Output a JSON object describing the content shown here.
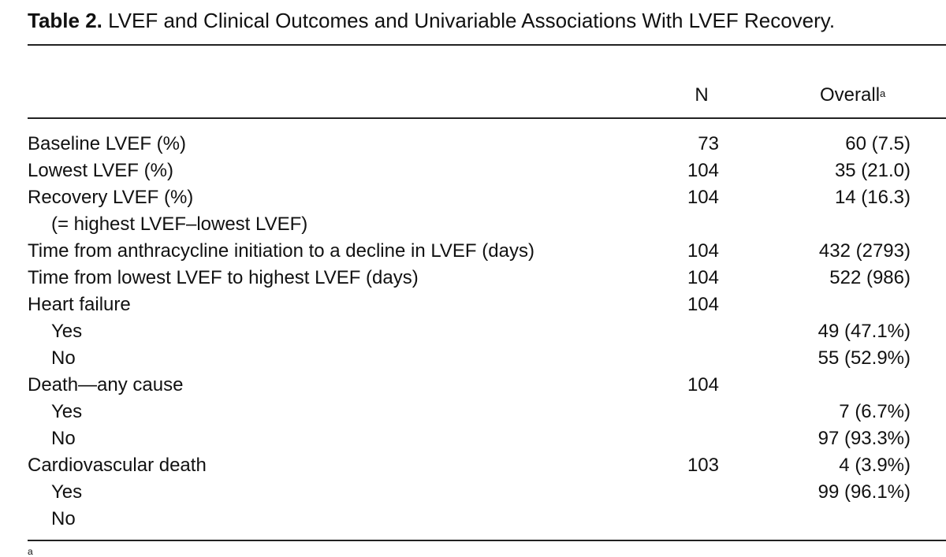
{
  "caption": {
    "label": "Table 2.",
    "text": "LVEF and Clinical Outcomes and Univariable Associations With LVEF Recovery."
  },
  "header": {
    "n": "N",
    "overall": "Overall",
    "overall_sup": "a"
  },
  "rows": [
    {
      "label": "Baseline LVEF (%)",
      "n": "73",
      "overall": "60 (7.5)"
    },
    {
      "label": "Lowest LVEF (%)",
      "n": "104",
      "overall": "35 (21.0)"
    },
    {
      "label": "Recovery LVEF (%)",
      "n": "104",
      "overall": "14 (16.3)"
    },
    {
      "label": "(= highest LVEF–lowest LVEF)",
      "n": "",
      "overall": ""
    },
    {
      "label": "Time from anthracycline initiation to a decline in LVEF (days)",
      "n": "104",
      "overall": "432 (2793)"
    },
    {
      "label": "Time from lowest LVEF to highest LVEF (days)",
      "n": "104",
      "overall": "522 (986)"
    },
    {
      "label": "Heart failure",
      "n": "104",
      "overall": ""
    },
    {
      "label": "Yes",
      "n": "",
      "overall": "49 (47.1%)"
    },
    {
      "label": "No",
      "n": "",
      "overall": "55 (52.9%)"
    },
    {
      "label": "Death—any cause",
      "n": "104",
      "overall": ""
    },
    {
      "label": "Yes",
      "n": "",
      "overall": "7 (6.7%)"
    },
    {
      "label": "No",
      "n": "",
      "overall": "97 (93.3%)"
    },
    {
      "label": "Cardiovascular death",
      "n": "103",
      "overall": "4 (3.9%)"
    },
    {
      "label": "Yes",
      "n": "",
      "overall": "99 (96.1%)"
    },
    {
      "label": "No",
      "n": "",
      "overall": ""
    }
  ],
  "footnote": "a"
}
